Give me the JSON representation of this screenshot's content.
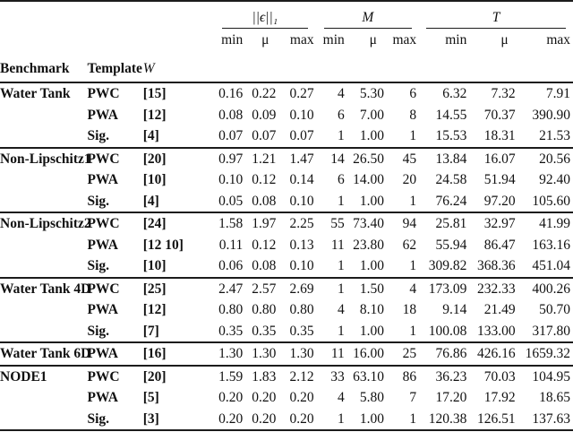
{
  "table": {
    "col_groups": [
      {
        "label": "||ϵ||₁"
      },
      {
        "label": "M"
      },
      {
        "label": "T"
      }
    ],
    "sub_headers": [
      "min",
      "μ",
      "max",
      "min",
      "μ",
      "max",
      "min",
      "μ",
      "max"
    ],
    "left_headers": [
      "Benchmark",
      "Template",
      "W"
    ],
    "groups": [
      {
        "benchmark": "Water Tank",
        "rows": [
          {
            "template": "PWC",
            "w": "[15]",
            "values": [
              "0.16",
              "0.22",
              "0.27",
              "4",
              "5.30",
              "6",
              "6.32",
              "7.32",
              "7.91"
            ]
          },
          {
            "template": "PWA",
            "w": "[12]",
            "values": [
              "0.08",
              "0.09",
              "0.10",
              "6",
              "7.00",
              "8",
              "14.55",
              "70.37",
              "390.90"
            ]
          },
          {
            "template": "Sig.",
            "w": "[4]",
            "values": [
              "0.07",
              "0.07",
              "0.07",
              "1",
              "1.00",
              "1",
              "15.53",
              "18.31",
              "21.53"
            ]
          }
        ]
      },
      {
        "benchmark": "Non-Lipschitz1",
        "rows": [
          {
            "template": "PWC",
            "w": "[20]",
            "values": [
              "0.97",
              "1.21",
              "1.47",
              "14",
              "26.50",
              "45",
              "13.84",
              "16.07",
              "20.56"
            ]
          },
          {
            "template": "PWA",
            "w": "[10]",
            "values": [
              "0.10",
              "0.12",
              "0.14",
              "6",
              "14.00",
              "20",
              "24.58",
              "51.94",
              "92.40"
            ]
          },
          {
            "template": "Sig.",
            "w": "[4]",
            "values": [
              "0.05",
              "0.08",
              "0.10",
              "1",
              "1.00",
              "1",
              "76.24",
              "97.20",
              "105.60"
            ]
          }
        ]
      },
      {
        "benchmark": "Non-Lipschitz2",
        "rows": [
          {
            "template": "PWC",
            "w": "[24]",
            "values": [
              "1.58",
              "1.97",
              "2.25",
              "55",
              "73.40",
              "94",
              "25.81",
              "32.97",
              "41.99"
            ]
          },
          {
            "template": "PWA",
            "w": "[12 10]",
            "values": [
              "0.11",
              "0.12",
              "0.13",
              "11",
              "23.80",
              "62",
              "55.94",
              "86.47",
              "163.16"
            ]
          },
          {
            "template": "Sig.",
            "w": "[10]",
            "values": [
              "0.06",
              "0.08",
              "0.10",
              "1",
              "1.00",
              "1",
              "309.82",
              "368.36",
              "451.04"
            ]
          }
        ]
      },
      {
        "benchmark": "Water Tank 4D",
        "rows": [
          {
            "template": "PWC",
            "w": "[25]",
            "values": [
              "2.47",
              "2.57",
              "2.69",
              "1",
              "1.50",
              "4",
              "173.09",
              "232.33",
              "400.26"
            ]
          },
          {
            "template": "PWA",
            "w": "[12]",
            "values": [
              "0.80",
              "0.80",
              "0.80",
              "4",
              "8.10",
              "18",
              "9.14",
              "21.49",
              "50.70"
            ]
          },
          {
            "template": "Sig.",
            "w": "[7]",
            "values": [
              "0.35",
              "0.35",
              "0.35",
              "1",
              "1.00",
              "1",
              "100.08",
              "133.00",
              "317.80"
            ]
          }
        ]
      },
      {
        "benchmark": "Water Tank 6D",
        "rows": [
          {
            "template": "PWA",
            "w": "[16]",
            "values": [
              "1.30",
              "1.30",
              "1.30",
              "11",
              "16.00",
              "25",
              "76.86",
              "426.16",
              "1659.32"
            ]
          }
        ]
      },
      {
        "benchmark": "NODE1",
        "rows": [
          {
            "template": "PWC",
            "w": "[20]",
            "values": [
              "1.59",
              "1.83",
              "2.12",
              "33",
              "63.10",
              "86",
              "36.23",
              "70.03",
              "104.95"
            ]
          },
          {
            "template": "PWA",
            "w": "[5]",
            "values": [
              "0.20",
              "0.20",
              "0.20",
              "4",
              "5.80",
              "7",
              "17.20",
              "17.92",
              "18.65"
            ]
          },
          {
            "template": "Sig.",
            "w": "[3]",
            "values": [
              "0.20",
              "0.20",
              "0.20",
              "1",
              "1.00",
              "1",
              "120.38",
              "126.51",
              "137.63"
            ]
          }
        ]
      }
    ]
  },
  "colors": {
    "text": "#111111",
    "rule": "#1c1c1c",
    "background": "#ffffff"
  }
}
